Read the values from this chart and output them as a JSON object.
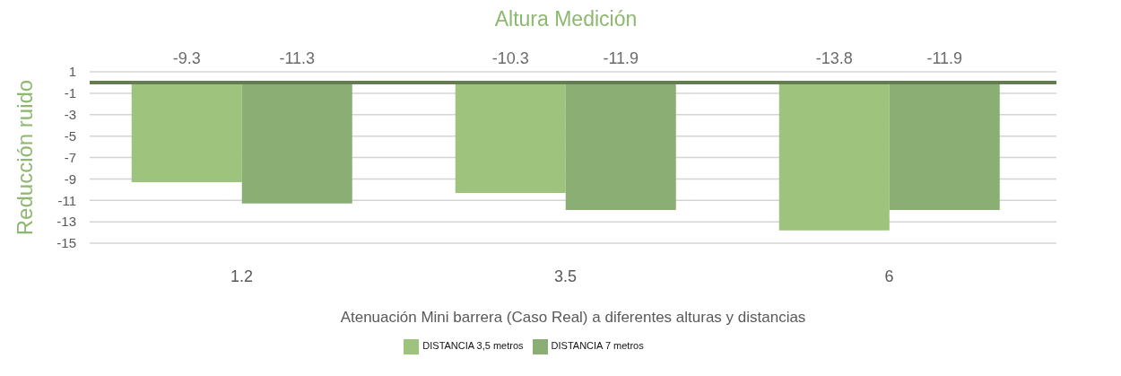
{
  "chart_data": {
    "type": "bar",
    "title": "Altura Medición",
    "xlabel": "Atenuación Mini barrera (Caso Real) a diferentes alturas y distancias",
    "ylabel": "Reducción ruido",
    "categories": [
      "1.2",
      "3.5",
      "6"
    ],
    "series": [
      {
        "name": "DISTANCIA 3,5 metros",
        "color": "#9dc37c",
        "values": [
          -9.3,
          -10.3,
          -13.8
        ]
      },
      {
        "name": "DISTANCIA 7 metros",
        "color": "#8bae74",
        "values": [
          -11.3,
          -11.9,
          -11.9
        ]
      }
    ],
    "ylim": [
      -15,
      1
    ],
    "yticks": [
      -15,
      -13,
      -11,
      -9,
      -7,
      -5,
      -3,
      -1,
      1
    ],
    "grid": "y",
    "legend": "bottom",
    "data_labels": true,
    "ref_lines": [
      {
        "axis": "y",
        "value": 0,
        "color": "#637c50"
      }
    ]
  }
}
